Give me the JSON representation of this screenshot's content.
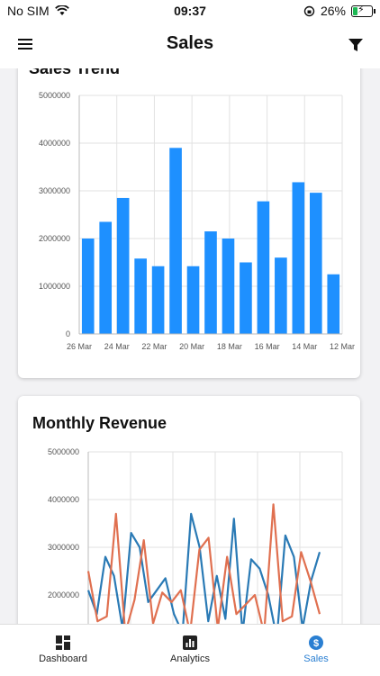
{
  "status_bar": {
    "carrier": "No SIM",
    "time": "09:37",
    "battery": "26%",
    "battery_level": 0.26
  },
  "header": {
    "title": "Sales"
  },
  "cards": {
    "sales_trend": {
      "title": "Sales Trend"
    },
    "monthly_revenue": {
      "title": "Monthly Revenue"
    }
  },
  "chart_data": [
    {
      "type": "bar",
      "title": "Sales Trend",
      "x_tick_labels": [
        "26 Mar",
        "24 Mar",
        "22 Mar",
        "20 Mar",
        "18 Mar",
        "16 Mar",
        "14 Mar",
        "12 Mar"
      ],
      "values": [
        2000000,
        2350000,
        2850000,
        1580000,
        1420000,
        3900000,
        1420000,
        2150000,
        2000000,
        1500000,
        2780000,
        1600000,
        3180000,
        2960000,
        1250000
      ],
      "ylim": [
        0,
        5000000
      ],
      "y_ticks": [
        "0",
        "1000000",
        "2000000",
        "3000000",
        "4000000",
        "5000000"
      ],
      "color": "#1e90ff",
      "grid": true
    },
    {
      "type": "line",
      "title": "Monthly Revenue",
      "ylim_visible": [
        1400000,
        5000000
      ],
      "y_ticks": [
        "2000000",
        "3000000",
        "4000000",
        "5000000"
      ],
      "grid": true,
      "series": [
        {
          "color": "#2a7ab5",
          "values": [
            2100000,
            1600000,
            2800000,
            2400000,
            1300000,
            3300000,
            3000000,
            1850000,
            2100000,
            2350000,
            1600000,
            1200000,
            3700000,
            3000000,
            1450000,
            2400000,
            1500000,
            3600000,
            1200000,
            2750000,
            2550000,
            2000000,
            1100000,
            3250000,
            2800000,
            1300000,
            2300000,
            2900000
          ]
        },
        {
          "color": "#e07050",
          "values": [
            2500000,
            1450000,
            1550000,
            3700000,
            1200000,
            1900000,
            3150000,
            1400000,
            2050000,
            1850000,
            2100000,
            1200000,
            2950000,
            3200000,
            1300000,
            2800000,
            1600000,
            1800000,
            2000000,
            1200000,
            3900000,
            1450000,
            1550000,
            2900000,
            2300000,
            1600000
          ]
        }
      ]
    }
  ],
  "tabs": [
    {
      "label": "Dashboard",
      "icon": "dashboard-icon"
    },
    {
      "label": "Analytics",
      "icon": "analytics-icon"
    },
    {
      "label": "Sales",
      "icon": "dollar-icon"
    }
  ],
  "colors": {
    "accent": "#2a7fd2",
    "bar": "#1e90ff"
  }
}
